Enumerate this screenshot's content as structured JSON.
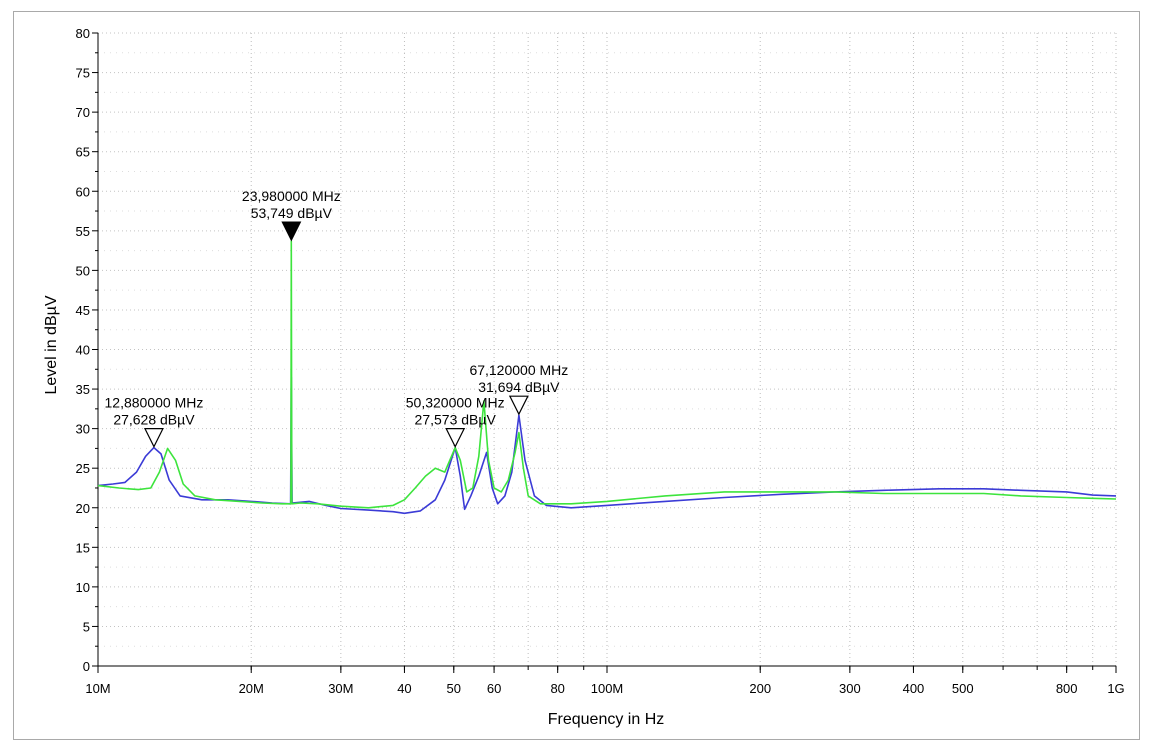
{
  "chart_data": {
    "type": "line",
    "xlabel": "Frequency in Hz",
    "ylabel": "Level in dBµV",
    "x_scale": "log",
    "x_range_hz": [
      10000000,
      1000000000
    ],
    "ylim": [
      0,
      80
    ],
    "grid": true,
    "y_ticks": [
      0,
      5,
      10,
      15,
      20,
      25,
      30,
      35,
      40,
      45,
      50,
      55,
      60,
      65,
      70,
      75,
      80
    ],
    "x_ticks": [
      {
        "hz": 10000000,
        "label": "10M"
      },
      {
        "hz": 20000000,
        "label": "20M"
      },
      {
        "hz": 30000000,
        "label": "30M"
      },
      {
        "hz": 40000000,
        "label": "40"
      },
      {
        "hz": 50000000,
        "label": "50"
      },
      {
        "hz": 60000000,
        "label": "60"
      },
      {
        "hz": 80000000,
        "label": "80"
      },
      {
        "hz": 100000000,
        "label": "100M"
      },
      {
        "hz": 200000000,
        "label": "200"
      },
      {
        "hz": 300000000,
        "label": "300"
      },
      {
        "hz": 400000000,
        "label": "400"
      },
      {
        "hz": 500000000,
        "label": "500"
      },
      {
        "hz": 800000000,
        "label": "800"
      },
      {
        "hz": 1000000000,
        "label": "1G"
      }
    ],
    "series": [
      {
        "color": "#3b3bd6",
        "points": [
          [
            10000000,
            22.8
          ],
          [
            10700000,
            23
          ],
          [
            11300000,
            23.2
          ],
          [
            11900000,
            24.5
          ],
          [
            12400000,
            26.5
          ],
          [
            12880000,
            27.6
          ],
          [
            13300000,
            26.8
          ],
          [
            13800000,
            23.5
          ],
          [
            14500000,
            21.5
          ],
          [
            16000000,
            21
          ],
          [
            18000000,
            21
          ],
          [
            20000000,
            20.8
          ],
          [
            22000000,
            20.6
          ],
          [
            23900000,
            20.5
          ],
          [
            23980000,
            36.5
          ],
          [
            24060000,
            20.6
          ],
          [
            26000000,
            20.8
          ],
          [
            28000000,
            20.3
          ],
          [
            30000000,
            19.9
          ],
          [
            34000000,
            19.7
          ],
          [
            38000000,
            19.5
          ],
          [
            40000000,
            19.3
          ],
          [
            43000000,
            19.6
          ],
          [
            46000000,
            21
          ],
          [
            48000000,
            23.5
          ],
          [
            50320000,
            27.6
          ],
          [
            51500000,
            24
          ],
          [
            52500000,
            19.8
          ],
          [
            54000000,
            21.5
          ],
          [
            56000000,
            24
          ],
          [
            58000000,
            27
          ],
          [
            59500000,
            22.5
          ],
          [
            61000000,
            20.5
          ],
          [
            63000000,
            21.5
          ],
          [
            65000000,
            24.5
          ],
          [
            67120000,
            31.7
          ],
          [
            69000000,
            26
          ],
          [
            72000000,
            21.5
          ],
          [
            76000000,
            20.3
          ],
          [
            85000000,
            20
          ],
          [
            100000000,
            20.3
          ],
          [
            130000000,
            20.8
          ],
          [
            170000000,
            21.3
          ],
          [
            220000000,
            21.7
          ],
          [
            280000000,
            22
          ],
          [
            350000000,
            22.2
          ],
          [
            450000000,
            22.4
          ],
          [
            550000000,
            22.4
          ],
          [
            650000000,
            22.2
          ],
          [
            800000000,
            22
          ],
          [
            900000000,
            21.6
          ],
          [
            1000000000,
            21.5
          ]
        ]
      },
      {
        "color": "#3de43d",
        "points": [
          [
            10000000,
            22.8
          ],
          [
            11000000,
            22.5
          ],
          [
            12000000,
            22.3
          ],
          [
            12700000,
            22.5
          ],
          [
            13200000,
            24.5
          ],
          [
            13700000,
            27.5
          ],
          [
            14200000,
            26
          ],
          [
            14700000,
            23
          ],
          [
            15500000,
            21.5
          ],
          [
            17000000,
            21
          ],
          [
            19000000,
            20.8
          ],
          [
            21000000,
            20.6
          ],
          [
            23000000,
            20.5
          ],
          [
            23930000,
            20.5
          ],
          [
            23980000,
            53.7
          ],
          [
            24030000,
            20.5
          ],
          [
            25000000,
            20.6
          ],
          [
            27000000,
            20.5
          ],
          [
            30000000,
            20.2
          ],
          [
            34000000,
            20
          ],
          [
            38000000,
            20.3
          ],
          [
            40000000,
            21
          ],
          [
            42000000,
            22.5
          ],
          [
            44000000,
            24
          ],
          [
            46000000,
            25
          ],
          [
            48000000,
            24.5
          ],
          [
            50320000,
            27.6
          ],
          [
            51500000,
            26
          ],
          [
            53000000,
            22
          ],
          [
            54500000,
            22.5
          ],
          [
            56000000,
            26.5
          ],
          [
            57300000,
            33.5
          ],
          [
            58500000,
            26
          ],
          [
            60000000,
            22.5
          ],
          [
            62000000,
            22
          ],
          [
            64000000,
            23.5
          ],
          [
            66000000,
            27
          ],
          [
            67120000,
            29.5
          ],
          [
            68500000,
            25
          ],
          [
            70000000,
            21.5
          ],
          [
            74000000,
            20.5
          ],
          [
            85000000,
            20.5
          ],
          [
            100000000,
            20.8
          ],
          [
            130000000,
            21.5
          ],
          [
            170000000,
            22
          ],
          [
            220000000,
            22
          ],
          [
            280000000,
            22
          ],
          [
            350000000,
            21.8
          ],
          [
            450000000,
            21.8
          ],
          [
            550000000,
            21.8
          ],
          [
            650000000,
            21.5
          ],
          [
            800000000,
            21.3
          ],
          [
            900000000,
            21.2
          ],
          [
            1000000000,
            21.1
          ]
        ]
      }
    ],
    "markers": [
      {
        "hz": 12880000,
        "level": 27.6,
        "freq_label": "12,880000 MHz",
        "level_label": "27,628 dBµV",
        "filled": false
      },
      {
        "hz": 23980000,
        "level": 53.7,
        "freq_label": "23,980000 MHz",
        "level_label": "53,749 dBµV",
        "filled": true
      },
      {
        "hz": 50320000,
        "level": 27.6,
        "freq_label": "50,320000 MHz",
        "level_label": "27,573 dBµV",
        "filled": false
      },
      {
        "hz": 67120000,
        "level": 31.7,
        "freq_label": "67,120000 MHz",
        "level_label": "31,694 dBµV",
        "filled": false
      }
    ]
  }
}
